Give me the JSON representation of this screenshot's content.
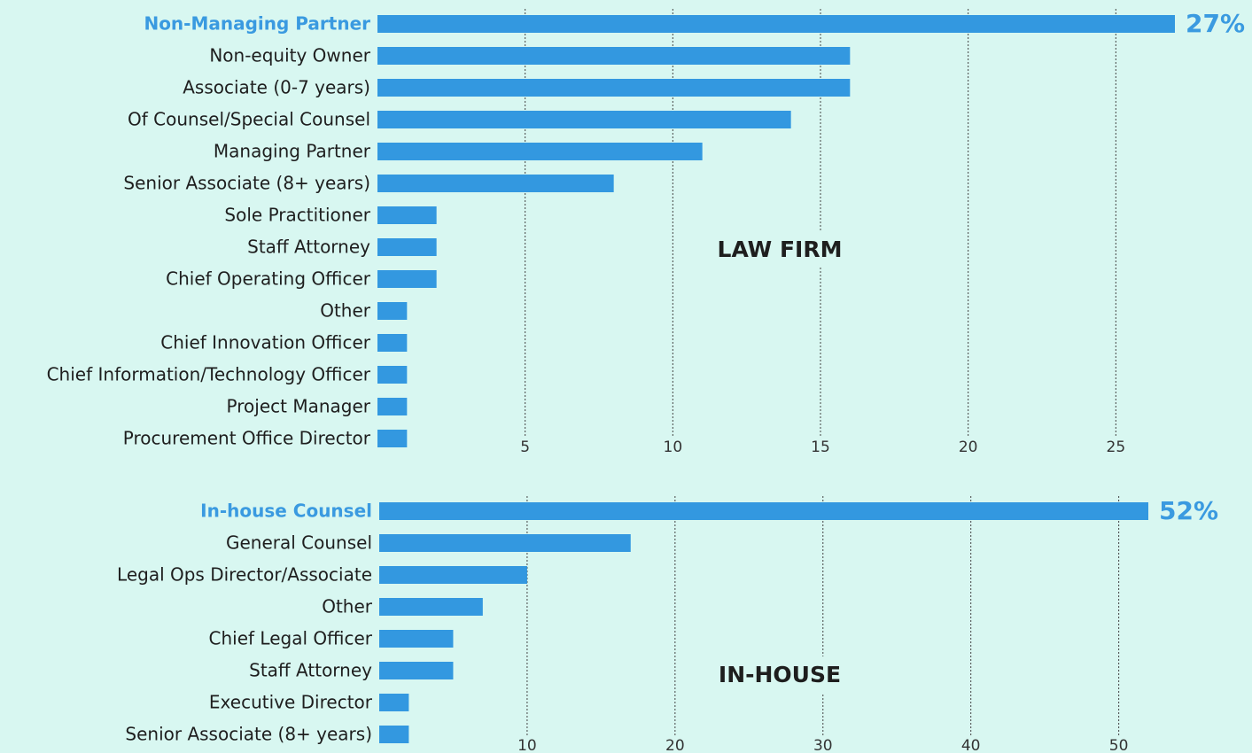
{
  "chart_data": [
    {
      "type": "bar",
      "orientation": "horizontal",
      "label": "LAW FIRM",
      "categories": [
        "Non-Managing Partner",
        "Non-equity Owner",
        "Associate (0-7 years)",
        "Of Counsel/Special Counsel",
        "Managing Partner",
        "Senior Associate (8+ years)",
        "Sole Practitioner",
        "Staff Attorney",
        "Chief Operating Officer",
        "Other",
        "Chief Innovation Officer",
        "Chief Information/Technology Officer",
        "Project Manager",
        "Procurement Office Director"
      ],
      "values": [
        27,
        16,
        16,
        14,
        11,
        8,
        2,
        2,
        2,
        1,
        1,
        1,
        1,
        1
      ],
      "value_labels": [
        "27%",
        null,
        null,
        null,
        null,
        null,
        null,
        null,
        null,
        null,
        null,
        null,
        null,
        null
      ],
      "color": "#3398e0",
      "xlim": [
        0,
        27
      ],
      "xticks": [
        5,
        10,
        15,
        20,
        25
      ],
      "grid": true
    },
    {
      "type": "bar",
      "orientation": "horizontal",
      "label": "IN-HOUSE",
      "categories": [
        "In-house Counsel",
        "General Counsel",
        "Legal Ops Director/Associate",
        "Other",
        "Chief Legal Officer",
        "Staff Attorney",
        "Executive Director",
        "Senior Associate (8+ years)"
      ],
      "values": [
        52,
        17,
        10,
        7,
        5,
        5,
        2,
        2
      ],
      "value_labels": [
        "52%",
        null,
        null,
        null,
        null,
        null,
        null,
        null
      ],
      "color": "#3398e0",
      "xlim": [
        0,
        52
      ],
      "xticks": [
        10,
        20,
        30,
        40,
        50
      ],
      "grid": true
    }
  ]
}
